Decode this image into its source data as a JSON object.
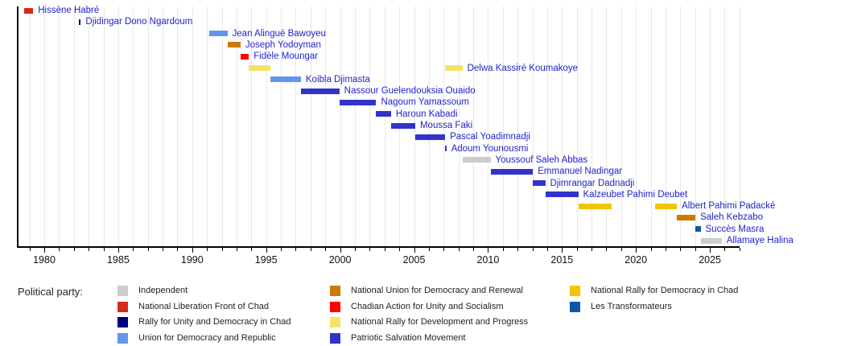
{
  "chart_data": {
    "type": "timeline",
    "title": "",
    "xlabel": "",
    "ylabel": "",
    "x_axis": {
      "min": 1978.2,
      "max": 2027.0,
      "major_ticks": [
        1980,
        1985,
        1990,
        1995,
        2000,
        2005,
        2010,
        2015,
        2020,
        2025
      ],
      "minor_tick_step": 1,
      "grid": true
    },
    "people": [
      {
        "name": "Hissène Habré",
        "party": "National Liberation Front of Chad",
        "terms": [
          [
            1978.66,
            1979.25
          ]
        ]
      },
      {
        "name": "Djidingar Dono Ngardoum",
        "party": "Rally for Unity and Democracy in Chad",
        "terms": [
          [
            1982.35,
            1982.47
          ]
        ]
      },
      {
        "name": "Jean Alingué Bawoyeu",
        "party": "Union for Democracy and Republic",
        "terms": [
          [
            1991.17,
            1992.38
          ]
        ]
      },
      {
        "name": "Joseph Yodoyman",
        "party": "National Union for Democracy and Renewal",
        "terms": [
          [
            1992.38,
            1993.27
          ]
        ]
      },
      {
        "name": "Fidèle Moungar",
        "party": "Chadian Action for Unity and Socialism",
        "terms": [
          [
            1993.27,
            1993.83
          ]
        ]
      },
      {
        "name": "Delwa Kassiré Koumakoye",
        "party": "National Rally for Development and Progress",
        "terms": [
          [
            1993.83,
            1995.28
          ],
          [
            2007.1,
            2008.27
          ]
        ]
      },
      {
        "name": "Koibla Djimasta",
        "party": "Union for Democracy and Republic",
        "terms": [
          [
            1995.28,
            1997.35
          ]
        ]
      },
      {
        "name": "Nassour Guelendouksia Ouaido",
        "party": "Patriotic Salvation Movement",
        "terms": [
          [
            1997.35,
            1999.95
          ]
        ]
      },
      {
        "name": "Nagoum Yamassoum",
        "party": "Patriotic Salvation Movement",
        "terms": [
          [
            1999.95,
            2002.44
          ]
        ]
      },
      {
        "name": "Haroun Kabadi",
        "party": "Patriotic Salvation Movement",
        "terms": [
          [
            2002.44,
            2003.44
          ]
        ]
      },
      {
        "name": "Moussa Faki",
        "party": "Patriotic Salvation Movement",
        "terms": [
          [
            2003.44,
            2005.08
          ]
        ]
      },
      {
        "name": "Pascal Yoadimnadji",
        "party": "Patriotic Salvation Movement",
        "terms": [
          [
            2005.08,
            2007.1
          ]
        ]
      },
      {
        "name": "Adoum Younousmi",
        "party": "Patriotic Salvation Movement",
        "terms": [
          [
            2007.1,
            2007.18
          ]
        ]
      },
      {
        "name": "Youssouf Saleh Abbas",
        "party": "Independent",
        "terms": [
          [
            2008.27,
            2010.17
          ]
        ]
      },
      {
        "name": "Emmanuel Nadingar",
        "party": "Patriotic Salvation Movement",
        "terms": [
          [
            2010.17,
            2013.04
          ]
        ]
      },
      {
        "name": "Djimrangar Dadnadji",
        "party": "Patriotic Salvation Movement",
        "terms": [
          [
            2013.04,
            2013.87
          ]
        ]
      },
      {
        "name": "Kalzeubet Pahimi Deubet",
        "party": "Patriotic Salvation Movement",
        "terms": [
          [
            2013.87,
            2016.1
          ]
        ]
      },
      {
        "name": "Albert Pahimi Padacké",
        "party": "National Rally for Democracy in Chad",
        "terms": [
          [
            2016.1,
            2018.35
          ],
          [
            2021.32,
            2022.77
          ]
        ]
      },
      {
        "name": "Saleh Kebzabo",
        "party": "National Union for Democracy and Renewal",
        "terms": [
          [
            2022.77,
            2024.02
          ]
        ]
      },
      {
        "name": "Succès Masra",
        "party": "Les Transformateurs",
        "terms": [
          [
            2024.02,
            2024.37
          ]
        ]
      },
      {
        "name": "Allamaye Halina",
        "party": "Independent",
        "terms": [
          [
            2024.37,
            2025.8
          ]
        ]
      }
    ]
  },
  "legend": {
    "title": "Political party:",
    "columns": [
      [
        {
          "label": "Independent",
          "color": "#CCCCCC"
        },
        {
          "label": "National Liberation Front of Chad",
          "color": "#D52B1E"
        },
        {
          "label": "Rally for Unity and Democracy in Chad",
          "color": "#000080"
        },
        {
          "label": "Union for Democracy and Republic",
          "color": "#6495ED"
        }
      ],
      [
        {
          "label": "National Union for Democracy and Renewal",
          "color": "#CC7A00"
        },
        {
          "label": "Chadian Action for Unity and Socialism",
          "color": "#FF0000"
        },
        {
          "label": "National Rally for Development and Progress",
          "color": "#F6E364"
        },
        {
          "label": "Patriotic Salvation Movement",
          "color": "#3333CC"
        }
      ],
      [
        {
          "label": "National Rally for Democracy in Chad",
          "color": "#F2C500"
        },
        {
          "label": "Les Transformateurs",
          "color": "#0D57A8"
        }
      ]
    ]
  },
  "colors": {
    "label_link": "#2222CC",
    "grid": "#E8E8E8",
    "axis": "#000000",
    "background": "#FFFFFF"
  }
}
